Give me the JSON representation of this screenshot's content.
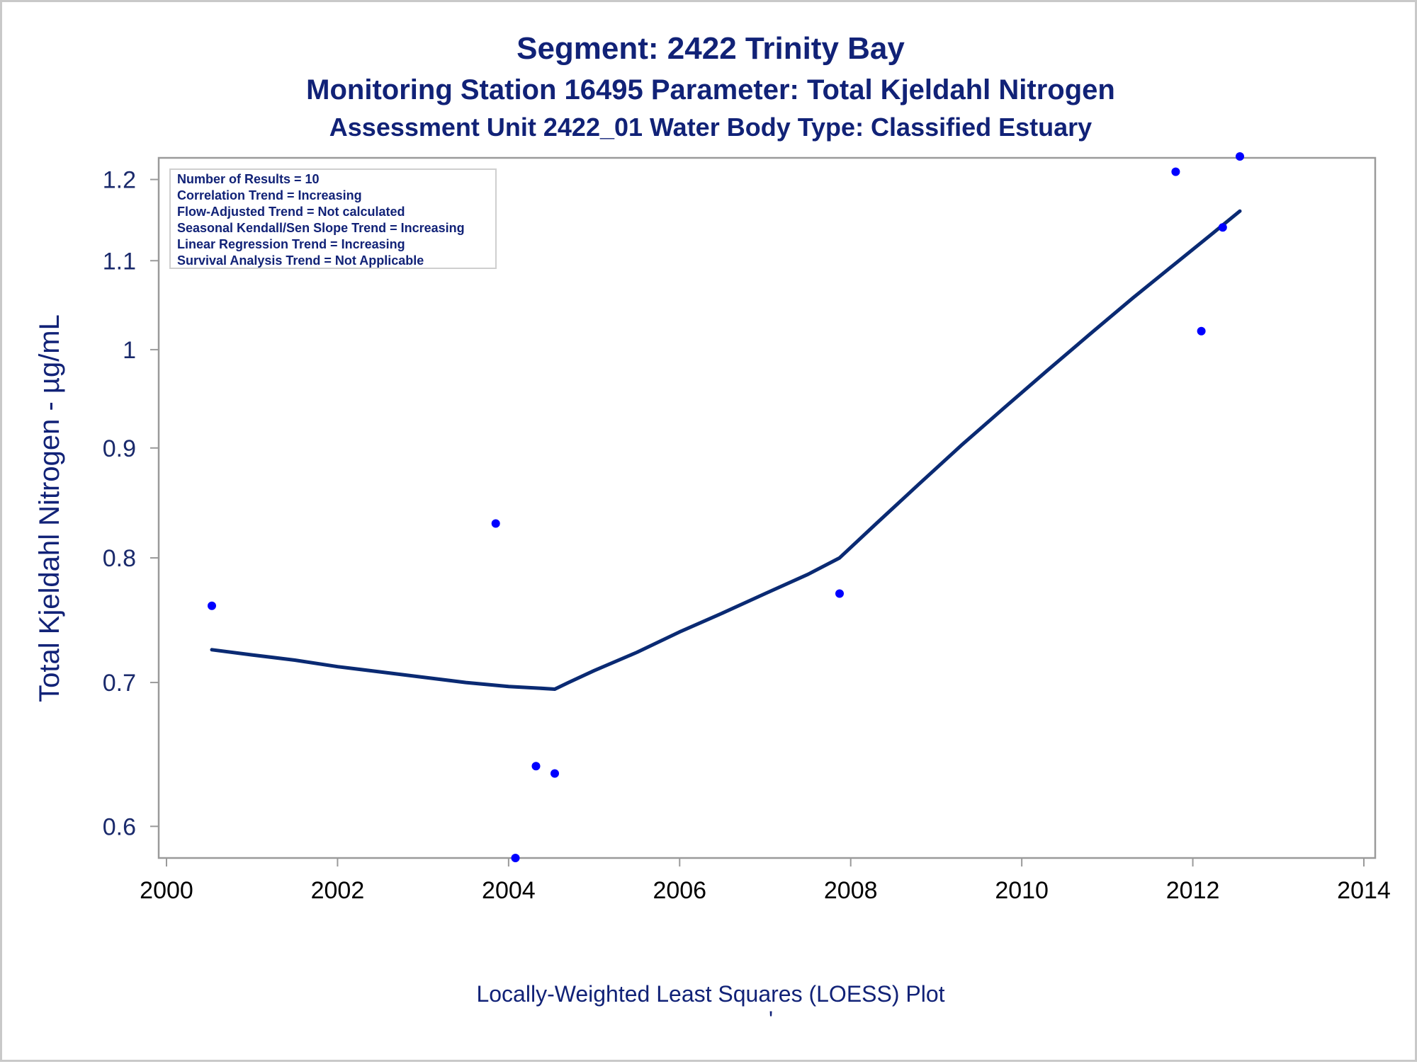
{
  "chart_data": {
    "type": "scatter",
    "title": "Segment: 2422  Trinity Bay",
    "subtitle": "Monitoring Station 16495 Parameter: Total Kjeldahl Nitrogen",
    "subtitle2": "Assessment Unit 2422_01   Water Body Type: Classified Estuary",
    "ylabel": "Total Kjeldahl Nitrogen -  µg/mL",
    "xlabel": "",
    "footnote": "Locally-Weighted Least Squares (LOESS) Plot",
    "footnote2": "'",
    "x_ticks": [
      "2000",
      "2002",
      "2004",
      "2006",
      "2008",
      "2010",
      "2012",
      "2014"
    ],
    "y_ticks": [
      "0.6",
      "0.7",
      "0.8",
      "0.9",
      "1",
      "1.1",
      "1.2"
    ],
    "xlim": [
      2000,
      2014
    ],
    "ylim": [
      0.58,
      1.23
    ],
    "y_scale": "log",
    "grid": false,
    "legend_placement": "top-left",
    "info_lines": [
      "Number of Results = 10",
      "Correlation Trend = Increasing",
      "Flow-Adjusted Trend = Not calculated",
      "Seasonal Kendall/Sen Slope Trend = Increasing",
      "Linear Regression Trend = Increasing",
      "Survival Analysis Trend = Not Applicable"
    ],
    "points": [
      {
        "x": 2000.53,
        "y": 0.76
      },
      {
        "x": 2003.85,
        "y": 0.83
      },
      {
        "x": 2004.08,
        "y": 0.58
      },
      {
        "x": 2004.32,
        "y": 0.64
      },
      {
        "x": 2004.54,
        "y": 0.635
      },
      {
        "x": 2007.87,
        "y": 0.77
      },
      {
        "x": 2011.8,
        "y": 1.21
      },
      {
        "x": 2012.1,
        "y": 1.02
      },
      {
        "x": 2012.35,
        "y": 1.14
      },
      {
        "x": 2012.55,
        "y": 1.23
      }
    ],
    "loess": [
      {
        "x": 2000.53,
        "y": 0.725
      },
      {
        "x": 2001.0,
        "y": 0.721
      },
      {
        "x": 2001.5,
        "y": 0.717
      },
      {
        "x": 2002.0,
        "y": 0.712
      },
      {
        "x": 2002.5,
        "y": 0.708
      },
      {
        "x": 2003.0,
        "y": 0.704
      },
      {
        "x": 2003.5,
        "y": 0.7
      },
      {
        "x": 2004.0,
        "y": 0.697
      },
      {
        "x": 2004.3,
        "y": 0.696
      },
      {
        "x": 2004.54,
        "y": 0.695
      },
      {
        "x": 2004.7,
        "y": 0.7
      },
      {
        "x": 2005.0,
        "y": 0.709
      },
      {
        "x": 2005.5,
        "y": 0.723
      },
      {
        "x": 2006.0,
        "y": 0.739
      },
      {
        "x": 2006.5,
        "y": 0.754
      },
      {
        "x": 2007.0,
        "y": 0.77
      },
      {
        "x": 2007.5,
        "y": 0.786
      },
      {
        "x": 2007.87,
        "y": 0.8
      },
      {
        "x": 2008.3,
        "y": 0.83
      },
      {
        "x": 2008.8,
        "y": 0.866
      },
      {
        "x": 2009.3,
        "y": 0.903
      },
      {
        "x": 2009.8,
        "y": 0.94
      },
      {
        "x": 2010.3,
        "y": 0.978
      },
      {
        "x": 2010.8,
        "y": 1.017
      },
      {
        "x": 2011.3,
        "y": 1.057
      },
      {
        "x": 2011.8,
        "y": 1.097
      },
      {
        "x": 2012.2,
        "y": 1.13
      },
      {
        "x": 2012.55,
        "y": 1.16
      }
    ],
    "colors": {
      "points": "#0000ff",
      "line": "#0a2a73",
      "text": "#112277",
      "frame": "#9a9a9a"
    }
  }
}
